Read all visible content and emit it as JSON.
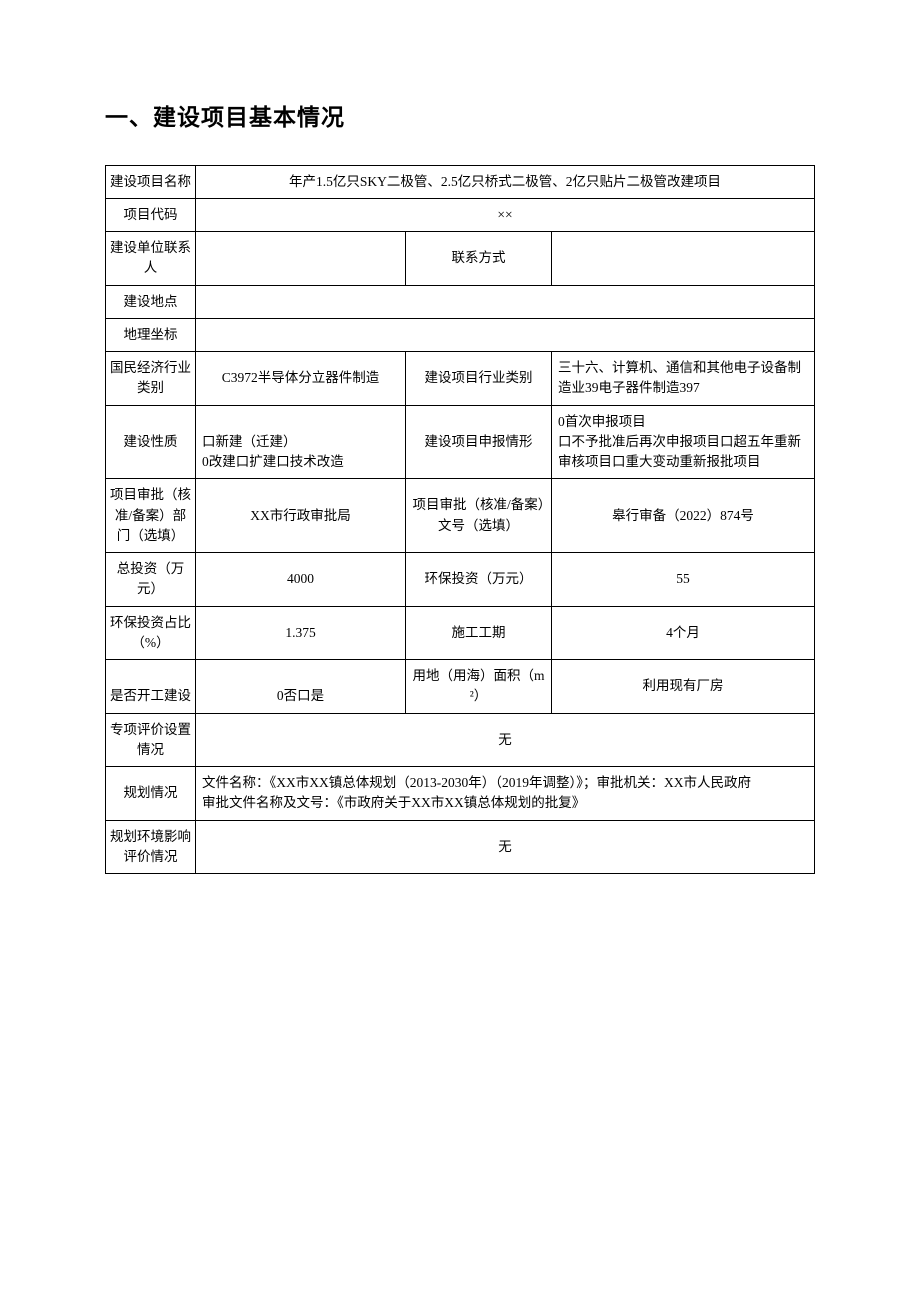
{
  "heading": "一、建设项目基本情况",
  "rows": {
    "project_name_label": "建设项目名称",
    "project_name_value": "年产1.5亿只SKY二极管、2.5亿只桥式二极管、2亿只贴片二极管改建项目",
    "project_code_label": "项目代码",
    "project_code_value": "××",
    "contact_label": "建设单位联系人",
    "contact_value": "",
    "contact_way_label": "联系方式",
    "contact_way_value": "",
    "location_label": "建设地点",
    "location_value": "",
    "geo_label": "地理坐标",
    "geo_value": "",
    "industry_cat_label": "国民经济行业类别",
    "industry_cat_value": "C3972半导体分立器件制造",
    "project_industry_label": "建设项目行业类别",
    "project_industry_value": "三十六、计算机、通信和其他电子设备制造业39电子器件制造397",
    "nature_label": "建设性质",
    "nature_value": "口新建（迁建）\n0改建口扩建口技术改造",
    "declare_label": "建设项目申报情形",
    "declare_value": "0首次申报项目\n口不予批准后再次申报项目口超五年重新审核项目口重大变动重新报批项目",
    "approval_dept_label": "项目审批（核准/备案）部门（选填）",
    "approval_dept_value": "XX市行政审批局",
    "approval_no_label": "项目审批（核准/备案）文号（选填）",
    "approval_no_value": "皋行审备（2022）874号",
    "total_inv_label": "总投资（万元）",
    "total_inv_value": "4000",
    "env_inv_label": "环保投资（万元）",
    "env_inv_value": "55",
    "env_ratio_label": "环保投资占比（%）",
    "env_ratio_value": "1.375",
    "period_label": "施工工期",
    "period_value": "4个月",
    "started_label": "是否开工建设",
    "started_value": "0否口是",
    "land_label": "用地（用海）面积（m²）",
    "land_value": "利用现有厂房",
    "special_label": "专项评价设置情况",
    "special_value": "无",
    "plan_label": "规划情况",
    "plan_value": "文件名称：《XX市XX镇总体规划（2013-2030年）（2019年调整）》；审批机关：XX市人民政府\n审批文件名称及文号：《市政府关于XX市XX镇总体规划的批复》",
    "plan_env_label": "规划环境影响评价情况",
    "plan_env_value": "无"
  }
}
